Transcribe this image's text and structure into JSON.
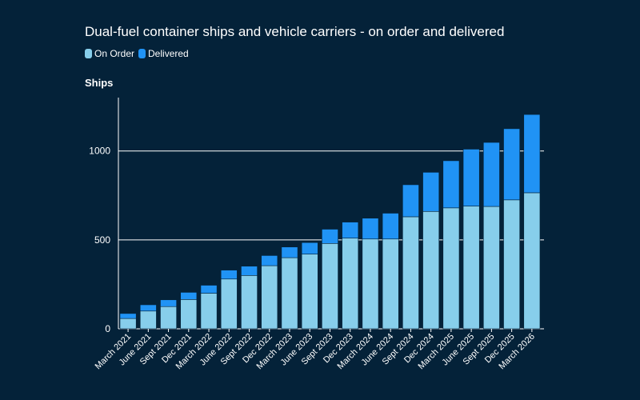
{
  "chart_data": {
    "type": "bar",
    "stacked": true,
    "title": "Dual-fuel container ships and vehicle carriers - on order and delivered",
    "ylabel": "Ships",
    "xlabel": "",
    "ylim": [
      0,
      1300
    ],
    "yticks": [
      0,
      500,
      1000
    ],
    "grid": true,
    "legend_position": "top-left",
    "categories": [
      "March 2021",
      "June 2021",
      "Sept 2021",
      "Dec 2021",
      "March 2022",
      "June 2022",
      "Sept 2022",
      "Dec 2022",
      "March 2023",
      "June 2023",
      "Sept 2023",
      "Dec 2023",
      "March 2024",
      "June 2024",
      "Sept 2024",
      "Dec 2024",
      "March 2025",
      "June 2025",
      "Sept 2025",
      "Dec 2025",
      "March 2026"
    ],
    "series": [
      {
        "name": "On Order",
        "color": "#87ceeb",
        "values": [
          58,
          100,
          125,
          165,
          200,
          280,
          300,
          355,
          400,
          420,
          480,
          510,
          505,
          505,
          630,
          660,
          680,
          690,
          688,
          725,
          765
        ]
      },
      {
        "name": "Delivered",
        "color": "#2093f5",
        "values": [
          28,
          35,
          38,
          40,
          45,
          50,
          52,
          57,
          60,
          65,
          80,
          90,
          117,
          145,
          180,
          220,
          265,
          320,
          360,
          400,
          440
        ]
      }
    ]
  }
}
